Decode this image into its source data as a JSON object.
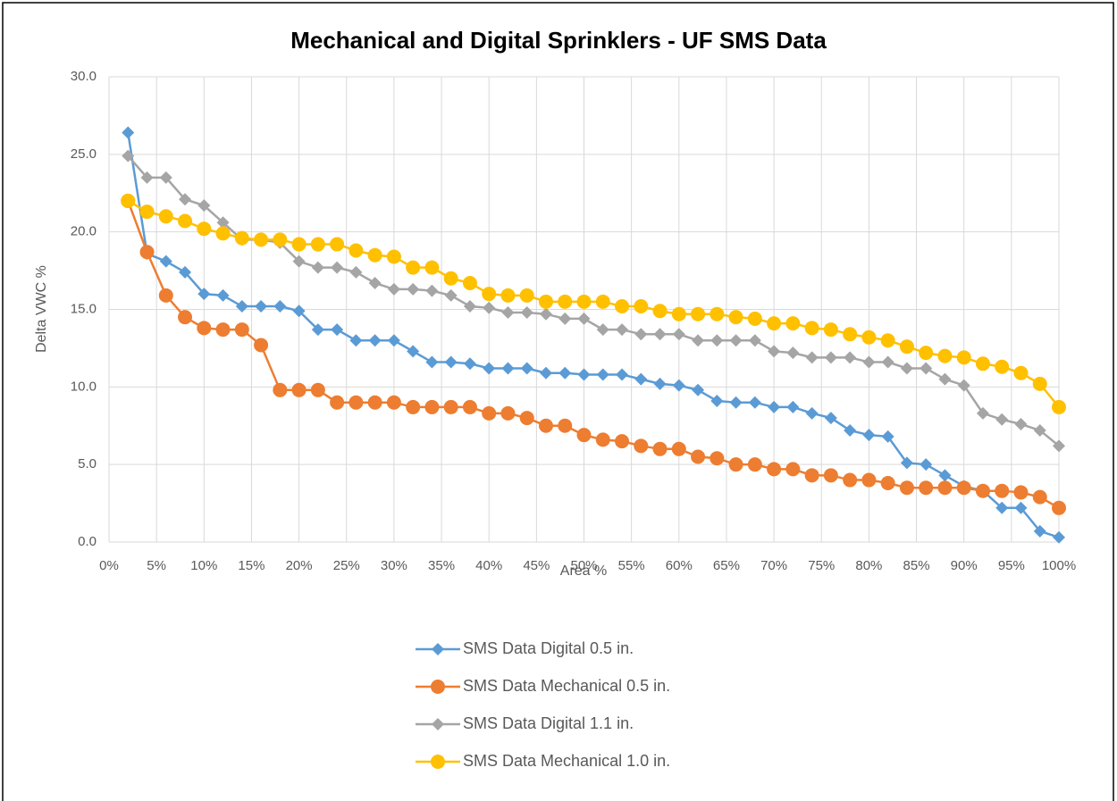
{
  "chart_data": {
    "type": "line",
    "title": "Mechanical and Digital Sprinklers - UF SMS Data",
    "x_label": "Area %",
    "y_label": "Delta VWC %",
    "x": [
      2,
      4,
      6,
      8,
      10,
      12,
      14,
      16,
      18,
      20,
      22,
      24,
      26,
      28,
      30,
      32,
      34,
      36,
      38,
      40,
      42,
      44,
      46,
      48,
      50,
      52,
      54,
      56,
      58,
      60,
      62,
      64,
      66,
      68,
      70,
      72,
      74,
      76,
      78,
      80,
      82,
      84,
      86,
      88,
      90,
      92,
      94,
      96,
      98,
      100
    ],
    "series": [
      {
        "name": "SMS Data Digital 0.5 in.",
        "color": "#5b9bd5",
        "marker": "diamond",
        "values": [
          26.4,
          18.6,
          18.1,
          17.4,
          16.0,
          15.9,
          15.2,
          15.2,
          15.2,
          14.9,
          13.7,
          13.7,
          13.0,
          13.0,
          13.0,
          12.3,
          11.6,
          11.6,
          11.5,
          11.2,
          11.2,
          11.2,
          10.9,
          10.9,
          10.8,
          10.8,
          10.8,
          10.5,
          10.2,
          10.1,
          9.8,
          9.1,
          9.0,
          9.0,
          8.7,
          8.7,
          8.3,
          8.0,
          7.2,
          6.9,
          6.8,
          5.1,
          5.0,
          4.3,
          3.6,
          3.3,
          2.2,
          2.2,
          0.7,
          0.3
        ]
      },
      {
        "name": "SMS Data Mechanical 0.5 in.",
        "color": "#ed7d31",
        "marker": "circle",
        "values": [
          22.0,
          18.7,
          15.9,
          14.5,
          13.8,
          13.7,
          13.7,
          12.7,
          9.8,
          9.8,
          9.8,
          9.0,
          9.0,
          9.0,
          9.0,
          8.7,
          8.7,
          8.7,
          8.7,
          8.3,
          8.3,
          8.0,
          7.5,
          7.5,
          6.9,
          6.6,
          6.5,
          6.2,
          6.0,
          6.0,
          5.5,
          5.4,
          5.0,
          5.0,
          4.7,
          4.7,
          4.3,
          4.3,
          4.0,
          4.0,
          3.8,
          3.5,
          3.5,
          3.5,
          3.5,
          3.3,
          3.3,
          3.2,
          2.9,
          2.2
        ]
      },
      {
        "name": "SMS Data Digital 1.1 in.",
        "color": "#a5a5a5",
        "marker": "diamond",
        "values": [
          24.9,
          23.5,
          23.5,
          22.1,
          21.7,
          20.6,
          19.5,
          19.5,
          19.3,
          18.1,
          17.7,
          17.7,
          17.4,
          16.7,
          16.3,
          16.3,
          16.2,
          15.9,
          15.2,
          15.1,
          14.8,
          14.8,
          14.7,
          14.4,
          14.4,
          13.7,
          13.7,
          13.4,
          13.4,
          13.4,
          13.0,
          13.0,
          13.0,
          13.0,
          12.3,
          12.2,
          11.9,
          11.9,
          11.9,
          11.6,
          11.6,
          11.2,
          11.2,
          10.5,
          10.1,
          8.3,
          7.9,
          7.6,
          7.2,
          6.2
        ]
      },
      {
        "name": "SMS Data Mechanical 1.0 in.",
        "color": "#ffc000",
        "marker": "circle",
        "values": [
          22.0,
          21.3,
          21.0,
          20.7,
          20.2,
          19.9,
          19.6,
          19.5,
          19.5,
          19.2,
          19.2,
          19.2,
          18.8,
          18.5,
          18.4,
          17.7,
          17.7,
          17.0,
          16.7,
          16.0,
          15.9,
          15.9,
          15.5,
          15.5,
          15.5,
          15.5,
          15.2,
          15.2,
          14.9,
          14.7,
          14.7,
          14.7,
          14.5,
          14.4,
          14.1,
          14.1,
          13.8,
          13.7,
          13.4,
          13.2,
          13.0,
          12.6,
          12.2,
          12.0,
          11.9,
          11.5,
          11.3,
          10.9,
          10.2,
          8.7
        ]
      }
    ],
    "xlim": [
      0,
      100
    ],
    "xticks": [
      {
        "value": 0,
        "label": "0%"
      },
      {
        "value": 5,
        "label": "5%"
      },
      {
        "value": 10,
        "label": "10%"
      },
      {
        "value": 15,
        "label": "15%"
      },
      {
        "value": 20,
        "label": "20%"
      },
      {
        "value": 25,
        "label": "25%"
      },
      {
        "value": 30,
        "label": "30%"
      },
      {
        "value": 35,
        "label": "35%"
      },
      {
        "value": 40,
        "label": "40%"
      },
      {
        "value": 45,
        "label": "45%"
      },
      {
        "value": 50,
        "label": "50%"
      },
      {
        "value": 55,
        "label": "55%"
      },
      {
        "value": 60,
        "label": "60%"
      },
      {
        "value": 65,
        "label": "65%"
      },
      {
        "value": 70,
        "label": "70%"
      },
      {
        "value": 75,
        "label": "75%"
      },
      {
        "value": 80,
        "label": "80%"
      },
      {
        "value": 85,
        "label": "85%"
      },
      {
        "value": 90,
        "label": "90%"
      },
      {
        "value": 95,
        "label": "95%"
      },
      {
        "value": 100,
        "label": "100%"
      }
    ],
    "ylim": [
      0,
      30
    ],
    "yticks": [
      {
        "value": 0,
        "label": "0.0"
      },
      {
        "value": 5,
        "label": "5.0"
      },
      {
        "value": 10,
        "label": "10.0"
      },
      {
        "value": 15,
        "label": "15.0"
      },
      {
        "value": 20,
        "label": "20.0"
      },
      {
        "value": 25,
        "label": "25.0"
      },
      {
        "value": 30,
        "label": "30.0"
      }
    ],
    "grid": true,
    "legend": "bottom"
  }
}
